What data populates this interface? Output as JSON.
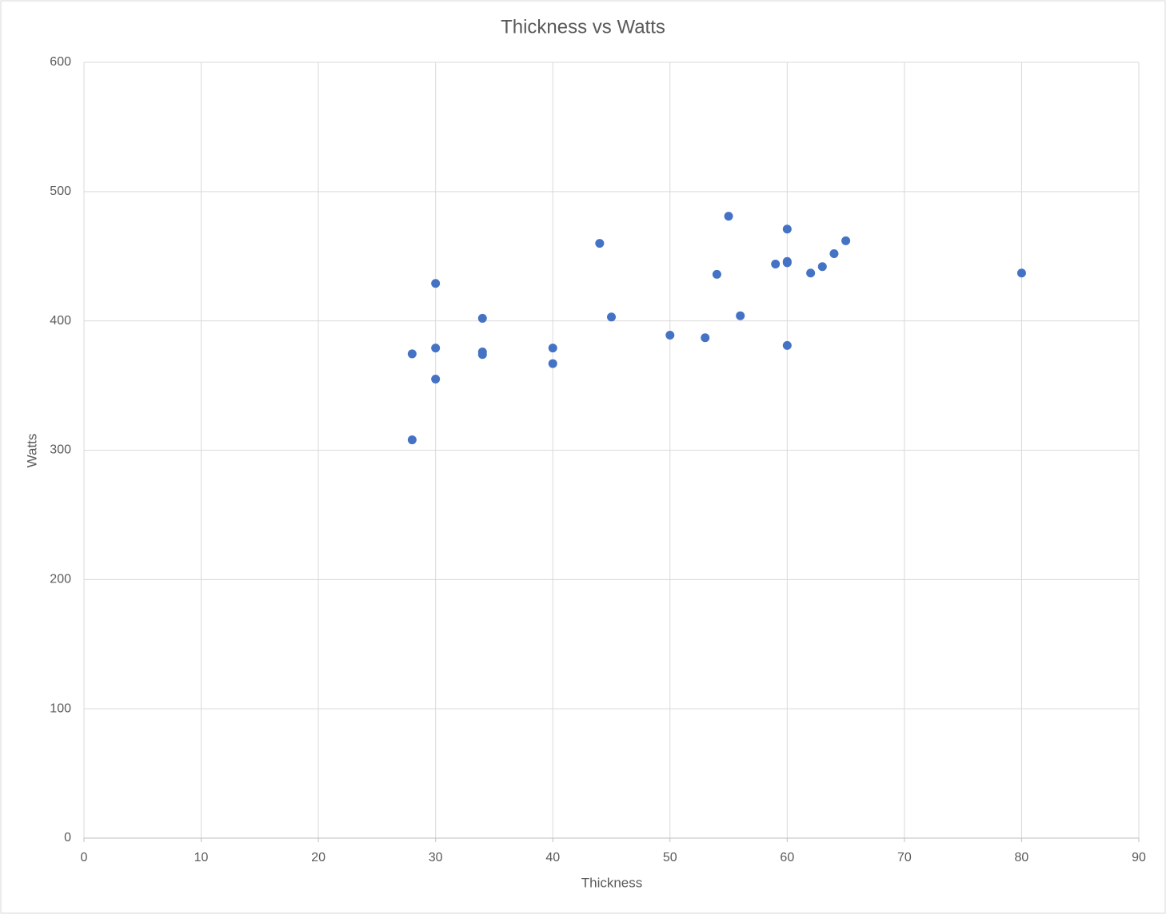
{
  "chart_data": {
    "type": "scatter",
    "title": "Thickness vs Watts",
    "x_label": "Thickness",
    "y_label": "Watts",
    "color": "#4472c4",
    "x": [
      28,
      28,
      30,
      30,
      30,
      34,
      34,
      34,
      40,
      40,
      44,
      45,
      50,
      53,
      54,
      55,
      56,
      59,
      60,
      60,
      60,
      60,
      62,
      63,
      64,
      65,
      80
    ],
    "values": [
      374.5,
      308,
      429,
      379,
      355,
      402,
      376,
      374,
      379,
      367,
      460,
      403,
      389,
      387,
      436,
      481,
      404,
      444,
      471,
      446,
      445,
      381,
      437,
      442,
      452,
      462,
      437
    ],
    "xlim": [
      0,
      90
    ],
    "xticks": [
      0,
      10,
      20,
      30,
      40,
      50,
      60,
      70,
      80,
      90
    ],
    "ylim": [
      0,
      600
    ],
    "yticks": [
      0,
      100,
      200,
      300,
      400,
      500,
      600
    ],
    "grid": true
  }
}
